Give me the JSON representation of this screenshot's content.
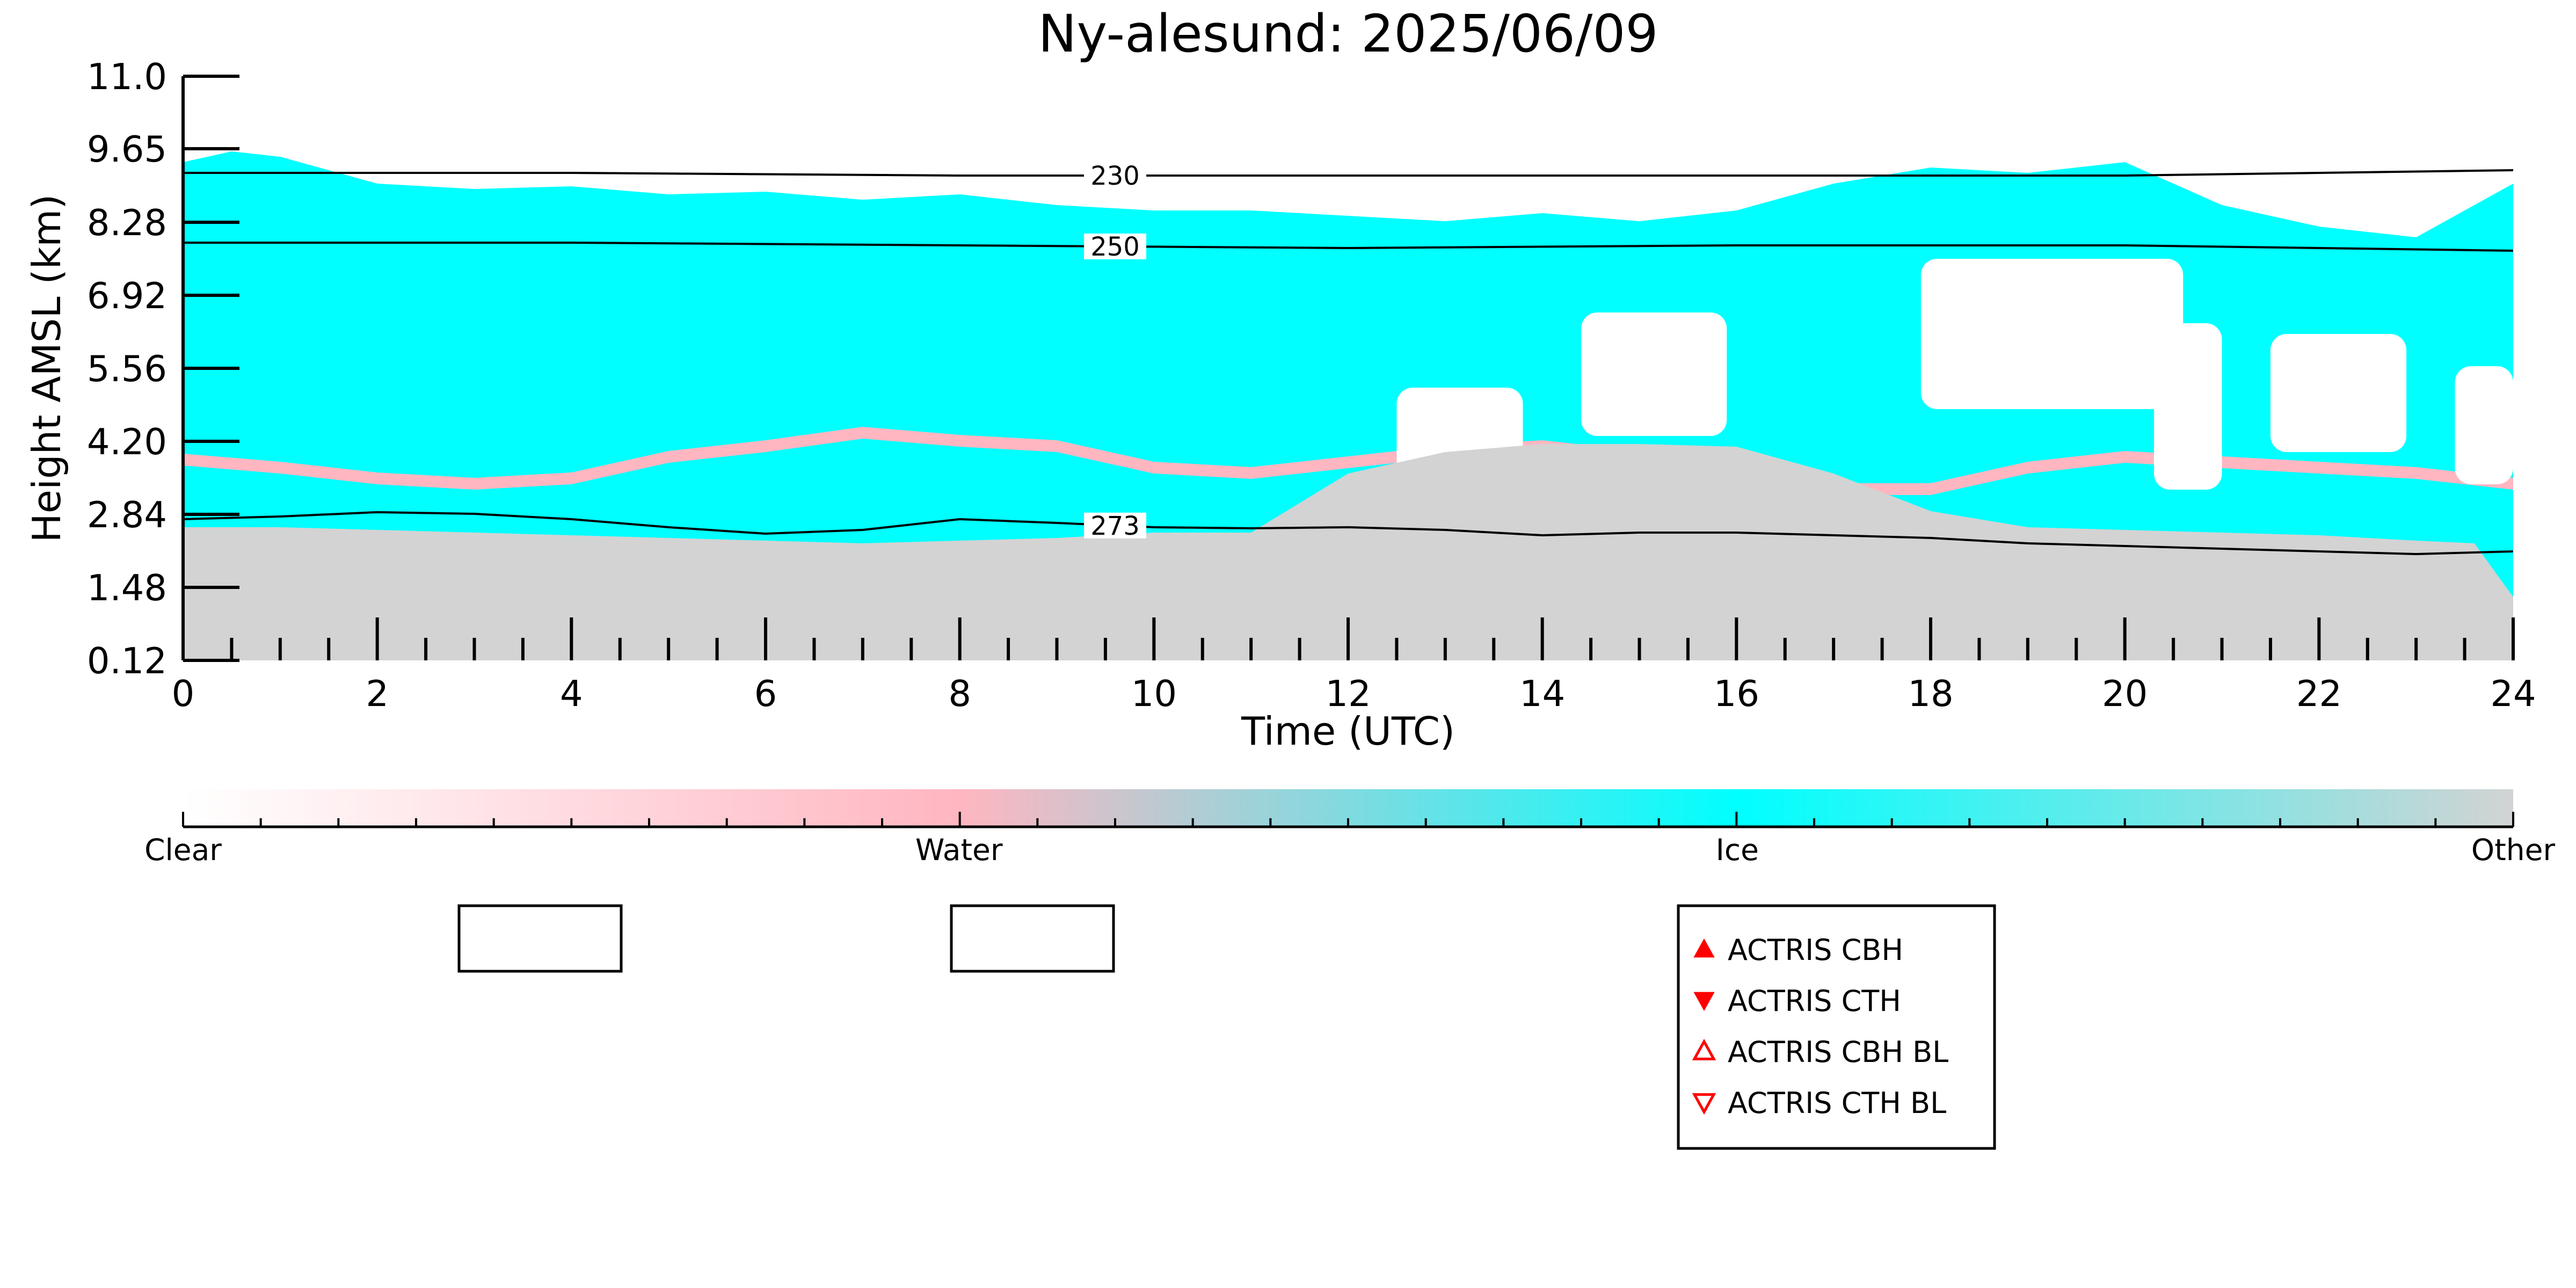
{
  "chart_data": {
    "type": "heatmap",
    "title": "Ny-alesund: 2025/06/09",
    "xlabel": "Time (UTC)",
    "ylabel": "Height AMSL (km)",
    "xlim": [
      0,
      24
    ],
    "ylim": [
      0.12,
      11.0
    ],
    "x_ticks": [
      "0",
      "2",
      "4",
      "6",
      "8",
      "10",
      "12",
      "14",
      "16",
      "18",
      "20",
      "22",
      "24"
    ],
    "y_ticks": [
      "0.12",
      "1.48",
      "2.84",
      "4.20",
      "5.56",
      "6.92",
      "8.28",
      "9.65",
      "11.0"
    ],
    "y_tick_values": [
      0.12,
      1.48,
      2.84,
      4.2,
      5.56,
      6.92,
      8.28,
      9.65,
      11.0
    ],
    "classes": [
      {
        "name": "Clear",
        "color": "#ffffff"
      },
      {
        "name": "Water",
        "color": "#ffb6c1"
      },
      {
        "name": "Ice",
        "color": "#00ffff"
      },
      {
        "name": "Other",
        "color": "#d3d3d3"
      }
    ],
    "ice_top_km": {
      "t": [
        0,
        0.5,
        1,
        2,
        3,
        4,
        5,
        6,
        7,
        8,
        9,
        10,
        11,
        12,
        13,
        14,
        15,
        16,
        17,
        18,
        19,
        20,
        21,
        22,
        23,
        24
      ],
      "h": [
        9.4,
        9.6,
        9.5,
        9.0,
        8.9,
        8.95,
        8.8,
        8.85,
        8.7,
        8.8,
        8.6,
        8.5,
        8.5,
        8.4,
        8.3,
        8.45,
        8.3,
        8.5,
        9.0,
        9.3,
        9.2,
        9.4,
        8.6,
        8.2,
        8.0,
        9.0
      ]
    },
    "clear_gaps": [
      {
        "t_start": 12.5,
        "t_end": 13.8,
        "h_bottom": 3.0,
        "h_top": 5.2
      },
      {
        "t_start": 14.4,
        "t_end": 15.9,
        "h_bottom": 4.3,
        "h_top": 6.6
      },
      {
        "t_start": 17.9,
        "t_end": 20.6,
        "h_bottom": 4.8,
        "h_top": 7.6
      },
      {
        "t_start": 20.3,
        "t_end": 21.0,
        "h_bottom": 3.3,
        "h_top": 6.4
      },
      {
        "t_start": 21.5,
        "t_end": 22.9,
        "h_bottom": 4.0,
        "h_top": 6.2
      },
      {
        "t_start": 23.4,
        "t_end": 24.0,
        "h_bottom": 3.4,
        "h_top": 5.6
      }
    ],
    "water_layer_km": {
      "t": [
        0,
        1,
        2,
        3,
        4,
        5,
        6,
        7,
        8,
        9,
        10,
        11,
        12,
        13,
        14,
        15,
        16,
        17,
        18,
        19,
        20,
        21,
        22,
        23,
        24
      ],
      "h": [
        3.85,
        3.7,
        3.5,
        3.4,
        3.5,
        3.9,
        4.1,
        4.35,
        4.2,
        4.1,
        3.7,
        3.6,
        3.8,
        4.0,
        4.1,
        3.9,
        3.3,
        3.3,
        3.3,
        3.7,
        3.9,
        3.8,
        3.7,
        3.6,
        3.4
      ]
    },
    "other_top_km": {
      "t": [
        0,
        1,
        2,
        3,
        4,
        5,
        6,
        7,
        8,
        9,
        10,
        11,
        12,
        12.5,
        13,
        14,
        15,
        16,
        17,
        18,
        19,
        20,
        21,
        22,
        23,
        23.6,
        24
      ],
      "h": [
        2.6,
        2.6,
        2.55,
        2.5,
        2.45,
        2.4,
        2.35,
        2.3,
        2.35,
        2.4,
        2.5,
        2.5,
        3.6,
        3.8,
        4.0,
        4.15,
        4.15,
        4.1,
        3.6,
        2.9,
        2.6,
        2.55,
        2.5,
        2.45,
        2.35,
        2.3,
        1.3
      ]
    },
    "contours": [
      {
        "label": "230",
        "t": [
          0,
          4,
          8,
          12,
          16,
          20,
          24
        ],
        "h": [
          9.2,
          9.2,
          9.15,
          9.15,
          9.15,
          9.15,
          9.25
        ]
      },
      {
        "label": "250",
        "t": [
          0,
          4,
          8,
          12,
          16,
          20,
          24
        ],
        "h": [
          7.9,
          7.9,
          7.85,
          7.8,
          7.85,
          7.85,
          7.75
        ]
      },
      {
        "label": "273",
        "t": [
          0,
          1,
          2,
          3,
          4,
          5,
          6,
          7,
          8,
          9,
          10,
          11,
          12,
          13,
          14,
          15,
          16,
          17,
          18,
          19,
          20,
          21,
          22,
          23,
          24
        ],
        "h": [
          2.75,
          2.8,
          2.88,
          2.85,
          2.75,
          2.6,
          2.48,
          2.55,
          2.75,
          2.68,
          2.6,
          2.58,
          2.6,
          2.55,
          2.45,
          2.5,
          2.5,
          2.45,
          2.4,
          2.3,
          2.25,
          2.2,
          2.15,
          2.1,
          2.15
        ]
      }
    ],
    "colorbar": {
      "labels": [
        "Clear",
        "Water",
        "Ice",
        "Other"
      ],
      "positions": [
        0,
        0.333,
        0.667,
        1.0
      ]
    },
    "legend": {
      "placement": "bottom-right",
      "entries": [
        {
          "label": "ACTRIS CBH",
          "marker": "triangle-up-filled",
          "color": "#ff0000"
        },
        {
          "label": "ACTRIS CTH",
          "marker": "triangle-down-filled",
          "color": "#ff0000"
        },
        {
          "label": "ACTRIS CBH BL",
          "marker": "triangle-up-open",
          "color": "#ff0000"
        },
        {
          "label": "ACTRIS CTH BL",
          "marker": "triangle-down-open",
          "color": "#ff0000"
        }
      ]
    },
    "grid": false
  }
}
